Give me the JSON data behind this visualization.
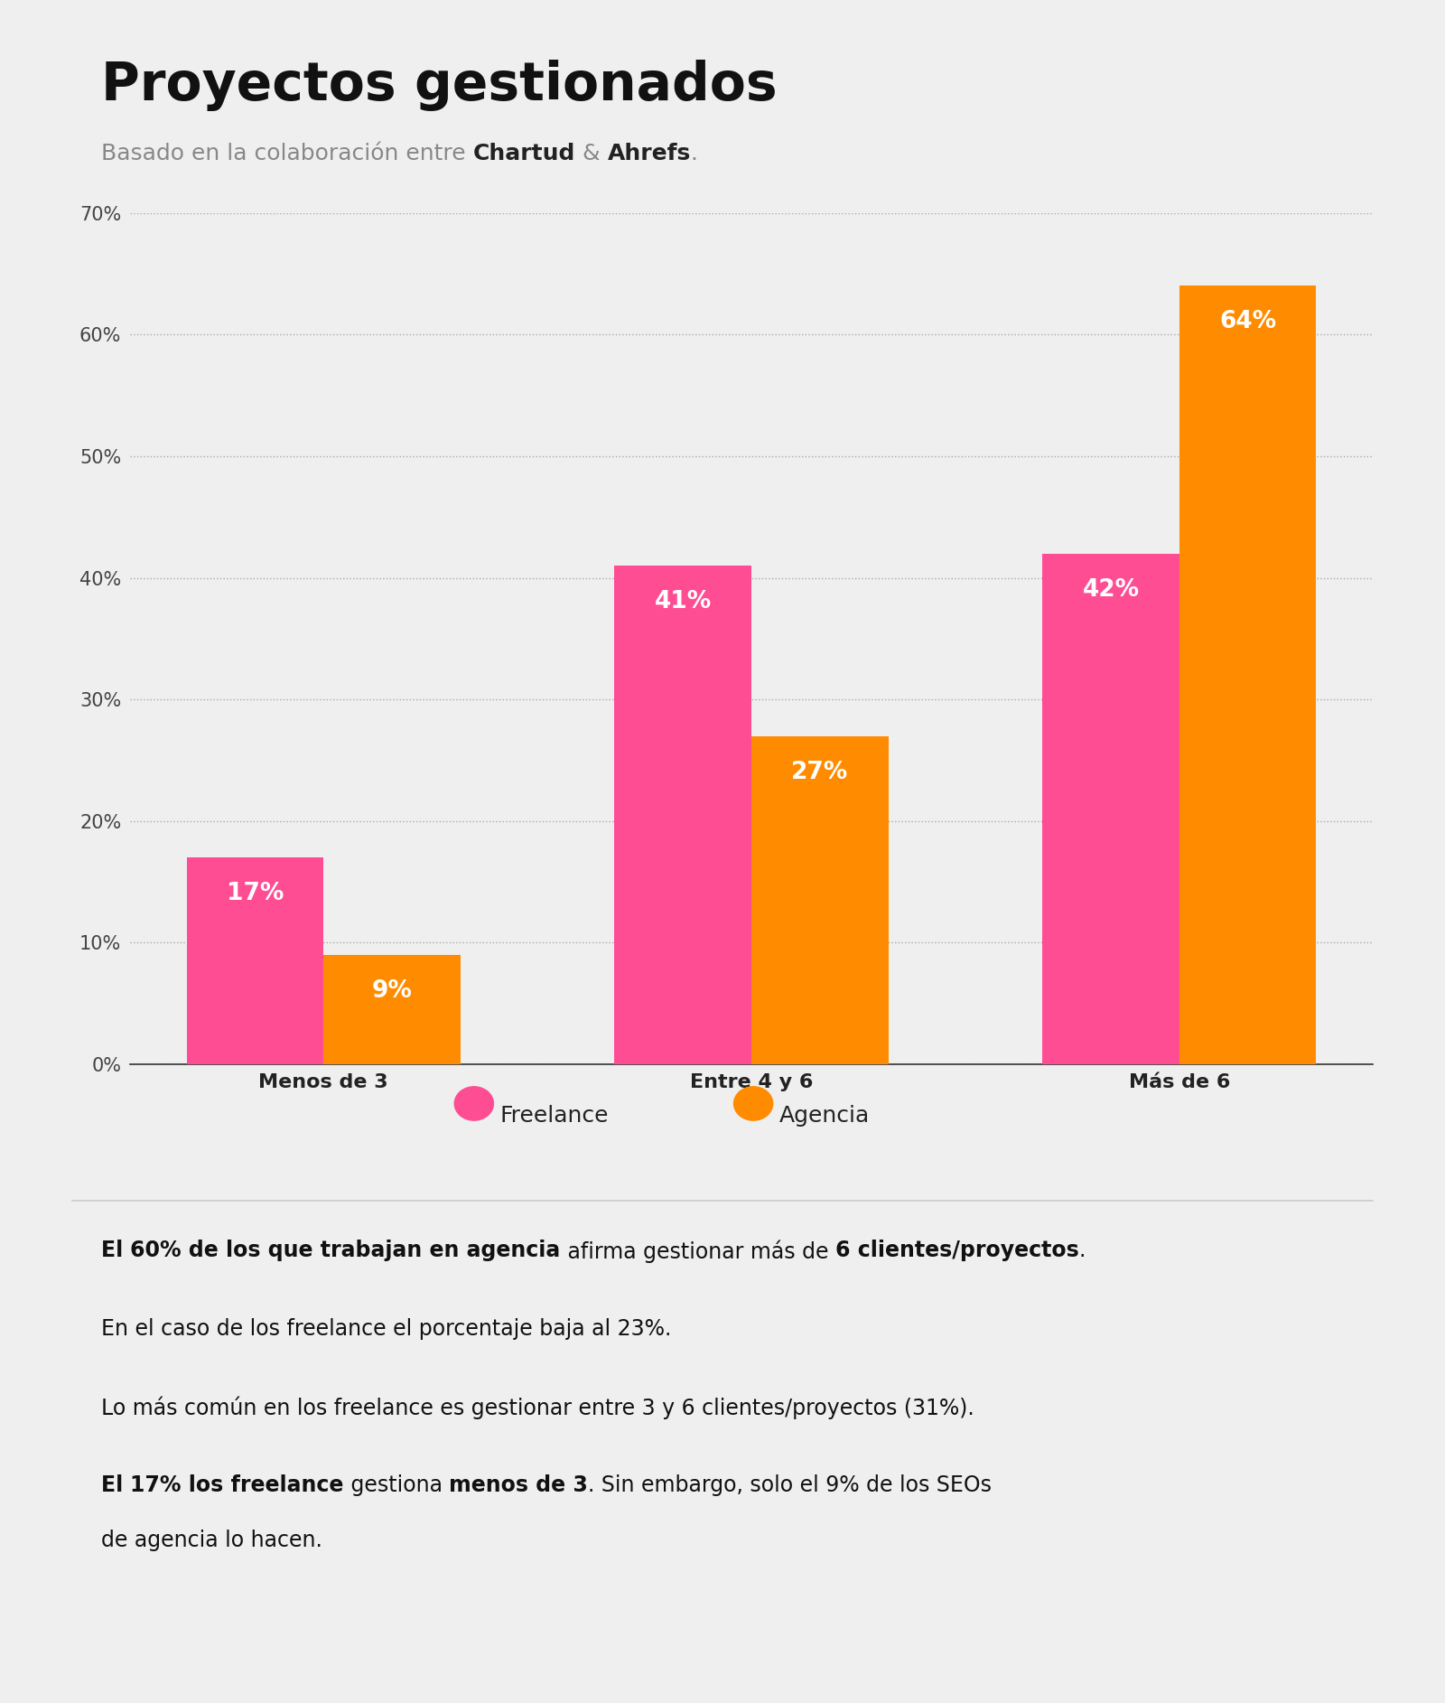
{
  "title": "Proyectos gestionados",
  "subtitle_plain": "Basado en la colaboración entre ",
  "subtitle_bold1": "Chartud",
  "subtitle_middle": " & ",
  "subtitle_bold2": "Ahrefs",
  "subtitle_end": ".",
  "categories": [
    "Menos de 3",
    "Entre 4 y 6",
    "Más de 6"
  ],
  "freelance_values": [
    17,
    41,
    42
  ],
  "agencia_values": [
    9,
    27,
    64
  ],
  "freelance_color": "#FF4D94",
  "agencia_color": "#FF8C00",
  "background_color": "#EFEFEF",
  "ylim": [
    0,
    70
  ],
  "yticks": [
    0,
    10,
    20,
    30,
    40,
    50,
    60,
    70
  ],
  "bar_width": 0.32,
  "legend_freelance": "Freelance",
  "legend_agencia": "Agencia",
  "title_fontsize": 42,
  "subtitle_fontsize": 18,
  "tick_fontsize": 15,
  "bar_label_fontsize": 19,
  "legend_fontsize": 18,
  "annotation_fontsize": 17
}
